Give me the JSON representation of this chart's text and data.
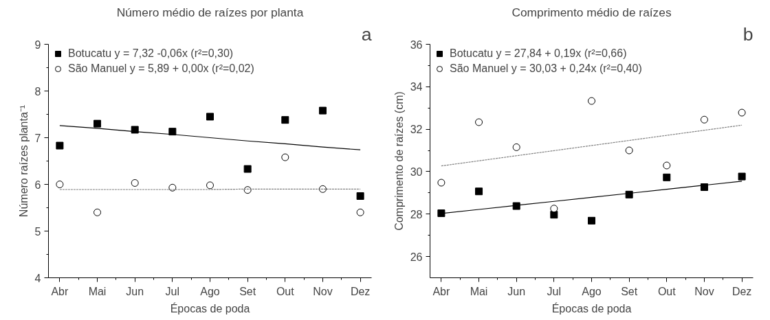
{
  "chart_data": [
    {
      "type": "scatter",
      "title": "Número médio de raízes por planta",
      "xlabel": "Épocas de poda",
      "ylabel": "Número raízes planta⁻¹",
      "annotations": [
        "a"
      ],
      "categories": [
        "Abr",
        "Mai",
        "Jun",
        "Jul",
        "Ago",
        "Set",
        "Out",
        "Nov",
        "Dez"
      ],
      "ylim": [
        4,
        9
      ],
      "yticks": [
        4,
        5,
        6,
        7,
        8,
        9
      ],
      "grid": false,
      "legend": "top left",
      "series": [
        {
          "name": "Botucatu y = 7,32 -0,06x (r²=0,30)",
          "color": "#000000",
          "marker": "square",
          "values": [
            6.83,
            7.3,
            7.17,
            7.13,
            7.45,
            6.33,
            7.38,
            7.58,
            5.75
          ]
        },
        {
          "name": "São Manuel y = 5,89 + 0,00x (r²=0,02)",
          "color": "#000000",
          "marker": "circle",
          "values": [
            6.0,
            5.4,
            6.03,
            5.93,
            5.98,
            5.88,
            6.58,
            5.9,
            5.4
          ]
        },
        {
          "type": "line",
          "color": "#000000",
          "line_style": "solid",
          "values": [
            7.26,
            7.2,
            7.13,
            7.07,
            7.0,
            6.93,
            6.87,
            6.8,
            6.74
          ]
        },
        {
          "type": "line",
          "color": "#808080",
          "line_style": "dotted",
          "values": [
            5.89,
            5.89,
            5.89,
            5.89,
            5.89,
            5.9,
            5.9,
            5.9,
            5.9
          ]
        }
      ]
    },
    {
      "type": "scatter",
      "title": "Comprimento médio de raízes",
      "xlabel": "Épocas de poda",
      "ylabel": "Comprimento de raízes (cm)",
      "annotations": [
        "b"
      ],
      "categories": [
        "Abr",
        "Mai",
        "Jun",
        "Jul",
        "Ago",
        "Set",
        "Out",
        "Nov",
        "Dez"
      ],
      "ylim": [
        25,
        36
      ],
      "yticks": [
        26,
        28,
        30,
        32,
        34,
        36
      ],
      "grid": false,
      "legend": "top left",
      "series": [
        {
          "name": "Botucatu y = 27,84 + 0,19x (r²=0,66)",
          "color": "#000000",
          "marker": "square",
          "values": [
            28.04,
            29.07,
            28.38,
            27.97,
            27.69,
            28.92,
            29.73,
            29.27,
            29.77
          ]
        },
        {
          "name": "São Manuel y = 30,03 + 0,24x (r²=0,40)",
          "color": "#000000",
          "marker": "circle",
          "values": [
            29.48,
            32.33,
            31.15,
            28.26,
            33.33,
            31.0,
            30.29,
            32.45,
            32.78
          ]
        },
        {
          "type": "line",
          "color": "#000000",
          "line_style": "solid",
          "values": [
            28.03,
            28.22,
            28.41,
            28.6,
            28.79,
            28.98,
            29.17,
            29.36,
            29.55
          ]
        },
        {
          "type": "line",
          "color": "#808080",
          "line_style": "dotted",
          "values": [
            30.27,
            30.51,
            30.75,
            30.99,
            31.23,
            31.47,
            31.71,
            31.95,
            32.19
          ]
        }
      ]
    }
  ]
}
